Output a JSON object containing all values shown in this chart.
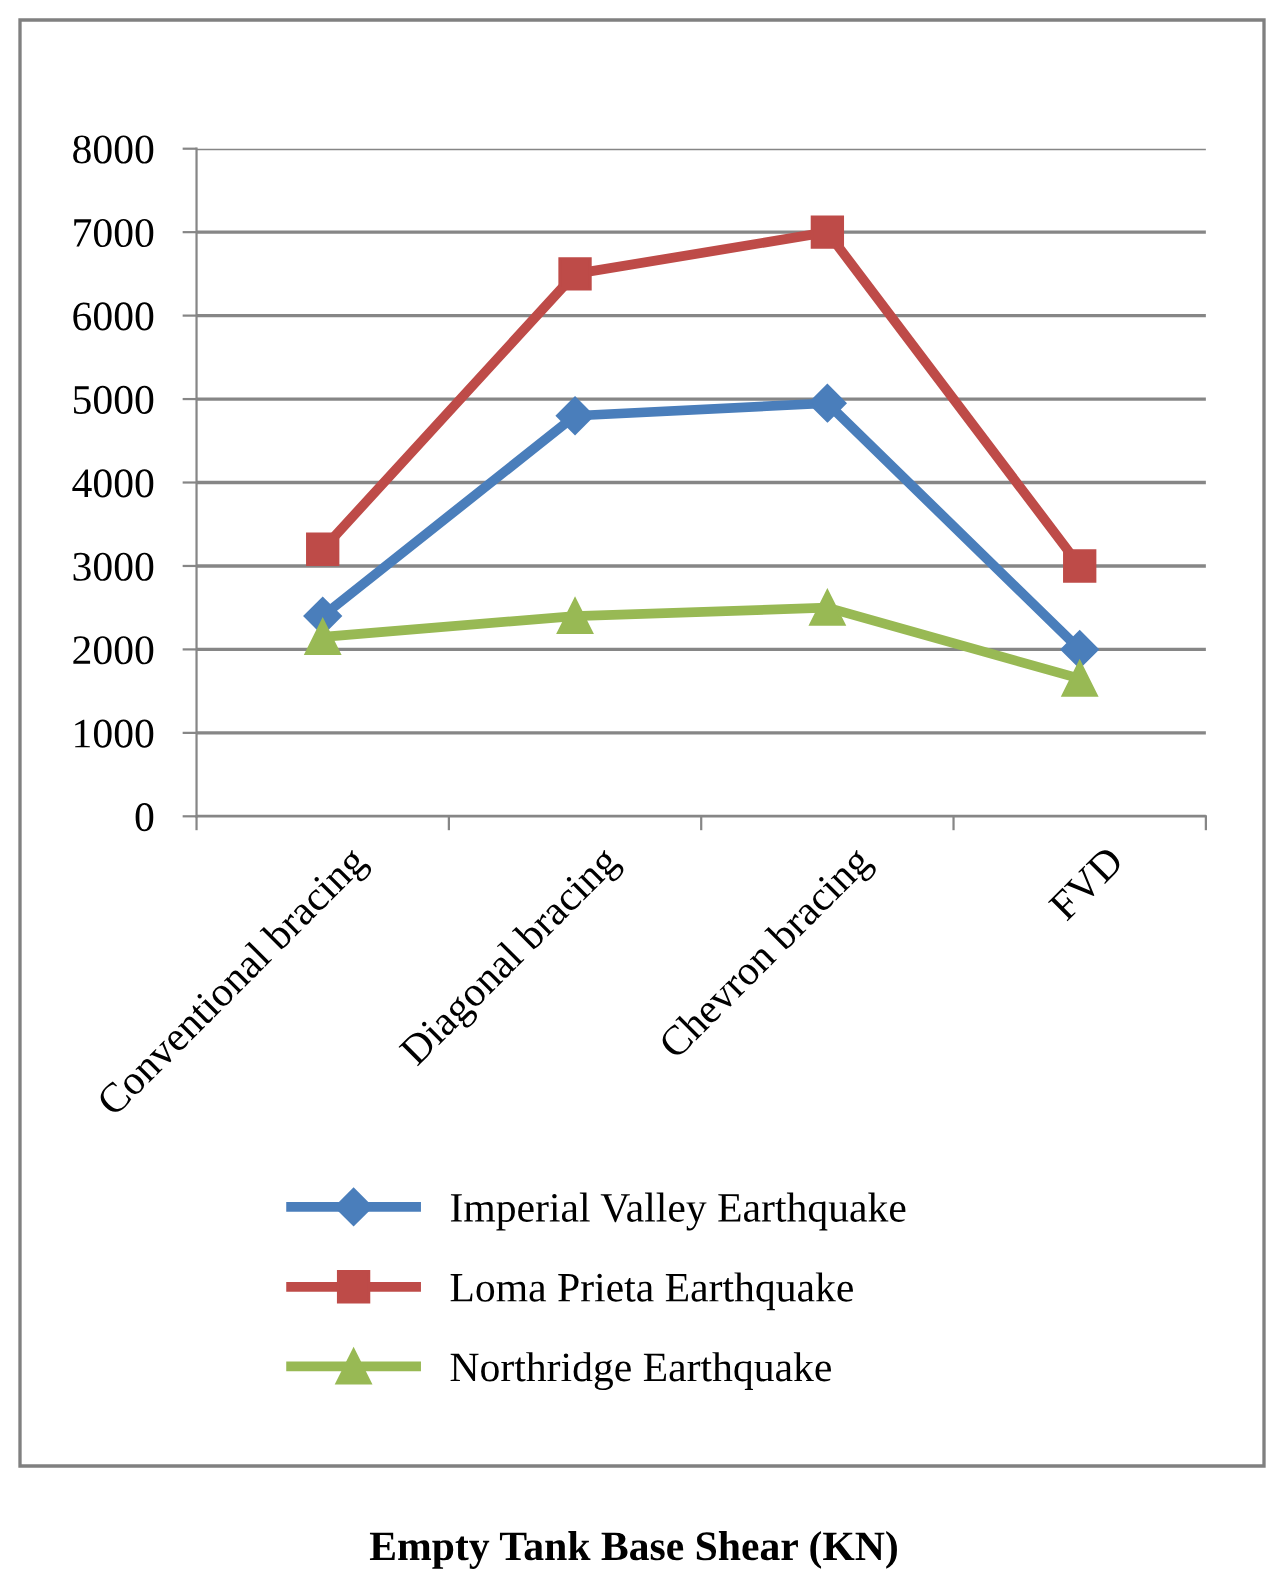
{
  "chart_data": {
    "type": "line",
    "title": "Empty Tank Base Shear (KN)",
    "categories": [
      "Conventional bracing",
      "Diagonal bracing",
      "Chevron bracing",
      "FVD"
    ],
    "series": [
      {
        "name": "Imperial Valley Earthquake",
        "color": "#4a7ebb",
        "marker": "diamond",
        "values": [
          2400,
          4800,
          4950,
          2000
        ]
      },
      {
        "name": "Loma Prieta Earthquake",
        "color": "#be4b48",
        "marker": "square",
        "values": [
          3200,
          6500,
          7000,
          3000
        ]
      },
      {
        "name": "Northridge Earthquake",
        "color": "#98b954",
        "marker": "triangle",
        "values": [
          2150,
          2400,
          2500,
          1650
        ]
      }
    ],
    "ylim": [
      0,
      8000
    ],
    "yticks": [
      0,
      1000,
      2000,
      3000,
      4000,
      5000,
      6000,
      7000,
      8000
    ],
    "grid": "y",
    "legend": "bottom",
    "line_style": "solid"
  }
}
